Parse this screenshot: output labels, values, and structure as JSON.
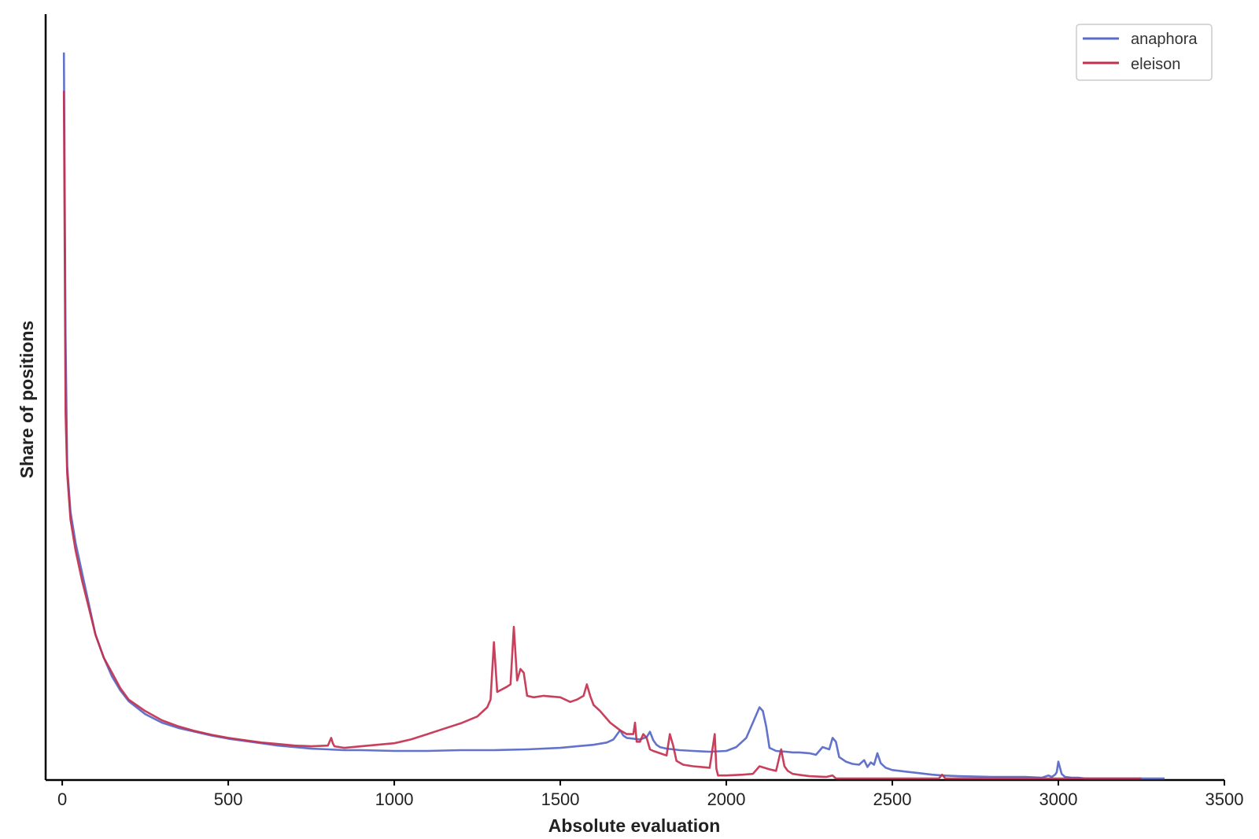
{
  "chart_data": {
    "type": "line",
    "title": "",
    "xlabel": "Absolute evaluation",
    "ylabel": "Share of positions",
    "xlim": [
      -50,
      3500
    ],
    "ylim": [
      0,
      1.0
    ],
    "xticks": [
      "0",
      "500",
      "1000",
      "1500",
      "2000",
      "2500",
      "3000",
      "3500"
    ],
    "show_y_ticks": false,
    "grid": false,
    "legend_position": "top-right",
    "series": [
      {
        "name": "anaphora",
        "color": "#5b6cc8",
        "x": [
          5,
          10,
          15,
          25,
          40,
          60,
          80,
          100,
          125,
          150,
          175,
          200,
          250,
          300,
          350,
          400,
          450,
          500,
          550,
          600,
          650,
          700,
          750,
          800,
          850,
          900,
          1000,
          1100,
          1200,
          1300,
          1400,
          1500,
          1550,
          1600,
          1640,
          1660,
          1680,
          1690,
          1700,
          1720,
          1740,
          1760,
          1770,
          1780,
          1790,
          1800,
          1820,
          1840,
          1860,
          1900,
          1950,
          2000,
          2030,
          2060,
          2080,
          2100,
          2110,
          2120,
          2130,
          2150,
          2180,
          2200,
          2220,
          2250,
          2270,
          2290,
          2310,
          2320,
          2330,
          2340,
          2360,
          2380,
          2400,
          2415,
          2425,
          2435,
          2445,
          2455,
          2465,
          2480,
          2500,
          2540,
          2580,
          2620,
          2650,
          2700,
          2800,
          2900,
          2950,
          2970,
          2980,
          2990,
          2995,
          3000,
          3010,
          3020,
          3040,
          3060,
          3080,
          3100,
          3200,
          3300,
          3320
        ],
        "y": [
          0.95,
          0.58,
          0.41,
          0.35,
          0.31,
          0.27,
          0.23,
          0.19,
          0.16,
          0.135,
          0.117,
          0.103,
          0.086,
          0.075,
          0.068,
          0.063,
          0.058,
          0.054,
          0.051,
          0.048,
          0.045,
          0.043,
          0.041,
          0.04,
          0.039,
          0.039,
          0.038,
          0.038,
          0.039,
          0.039,
          0.04,
          0.042,
          0.044,
          0.046,
          0.049,
          0.053,
          0.065,
          0.058,
          0.055,
          0.054,
          0.053,
          0.056,
          0.063,
          0.052,
          0.046,
          0.043,
          0.041,
          0.04,
          0.039,
          0.038,
          0.037,
          0.038,
          0.043,
          0.055,
          0.075,
          0.095,
          0.09,
          0.07,
          0.042,
          0.038,
          0.037,
          0.036,
          0.036,
          0.035,
          0.033,
          0.043,
          0.04,
          0.055,
          0.05,
          0.03,
          0.024,
          0.021,
          0.02,
          0.026,
          0.017,
          0.023,
          0.02,
          0.035,
          0.022,
          0.016,
          0.013,
          0.011,
          0.009,
          0.007,
          0.006,
          0.005,
          0.004,
          0.004,
          0.003,
          0.006,
          0.004,
          0.007,
          0.01,
          0.024,
          0.008,
          0.004,
          0.003,
          0.003,
          0.002,
          0.002,
          0.002,
          0.002,
          0.002
        ]
      },
      {
        "name": "eleison",
        "color": "#c3304e",
        "x": [
          5,
          10,
          15,
          25,
          40,
          60,
          80,
          100,
          125,
          150,
          175,
          200,
          250,
          300,
          350,
          400,
          450,
          500,
          550,
          600,
          650,
          700,
          750,
          800,
          810,
          815,
          820,
          850,
          900,
          1000,
          1050,
          1100,
          1150,
          1200,
          1250,
          1280,
          1290,
          1300,
          1310,
          1340,
          1350,
          1360,
          1370,
          1380,
          1390,
          1400,
          1420,
          1450,
          1500,
          1530,
          1550,
          1570,
          1580,
          1590,
          1600,
          1620,
          1650,
          1680,
          1700,
          1720,
          1725,
          1730,
          1740,
          1750,
          1760,
          1770,
          1780,
          1800,
          1820,
          1830,
          1840,
          1850,
          1870,
          1900,
          1950,
          1965,
          1970,
          1975,
          1980,
          2000,
          2050,
          2080,
          2100,
          2130,
          2150,
          2165,
          2175,
          2185,
          2200,
          2250,
          2300,
          2320,
          2330,
          2340,
          2400,
          2500,
          2600,
          2640,
          2650,
          2660,
          2700,
          2800,
          2900,
          3000,
          3100,
          3200,
          3250
        ],
        "y": [
          0.9,
          0.48,
          0.4,
          0.34,
          0.3,
          0.26,
          0.225,
          0.19,
          0.16,
          0.14,
          0.12,
          0.105,
          0.09,
          0.078,
          0.07,
          0.064,
          0.059,
          0.055,
          0.052,
          0.049,
          0.047,
          0.045,
          0.044,
          0.045,
          0.055,
          0.048,
          0.044,
          0.042,
          0.044,
          0.048,
          0.053,
          0.06,
          0.067,
          0.074,
          0.083,
          0.095,
          0.105,
          0.18,
          0.115,
          0.122,
          0.125,
          0.2,
          0.13,
          0.145,
          0.14,
          0.11,
          0.108,
          0.11,
          0.108,
          0.102,
          0.105,
          0.11,
          0.125,
          0.11,
          0.098,
          0.09,
          0.075,
          0.065,
          0.06,
          0.06,
          0.075,
          0.05,
          0.05,
          0.06,
          0.055,
          0.04,
          0.038,
          0.035,
          0.032,
          0.06,
          0.045,
          0.025,
          0.02,
          0.018,
          0.016,
          0.06,
          0.015,
          0.006,
          0.006,
          0.006,
          0.007,
          0.008,
          0.018,
          0.014,
          0.012,
          0.04,
          0.018,
          0.012,
          0.008,
          0.005,
          0.004,
          0.006,
          0.002,
          0.002,
          0.002,
          0.002,
          0.002,
          0.002,
          0.007,
          0.002,
          0.002,
          0.002,
          0.002,
          0.002,
          0.002,
          0.002,
          0.002
        ]
      }
    ]
  }
}
